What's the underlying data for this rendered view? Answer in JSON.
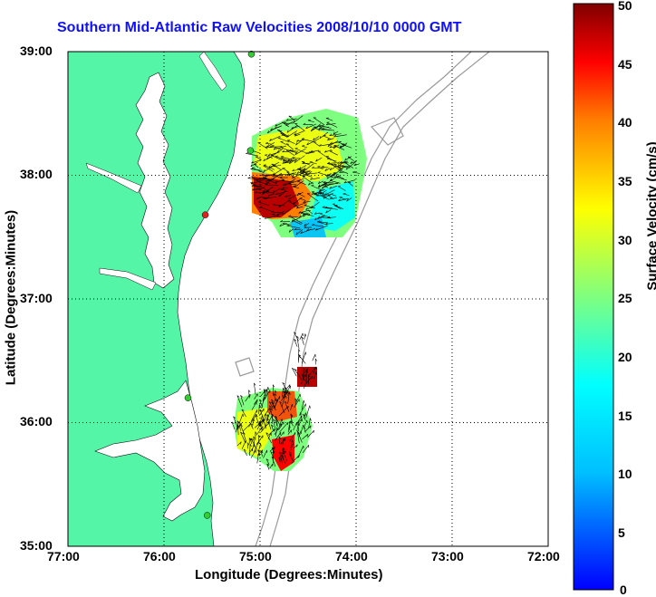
{
  "title": "Southern Mid-Atlantic Raw Velocities 2008/10/10 0000 GMT",
  "x_axis": {
    "label": "Longitude (Degrees:Minutes)",
    "ticks": [
      "77:00",
      "76:00",
      "75:00",
      "74:00",
      "73:00",
      "72:00"
    ]
  },
  "y_axis": {
    "label": "Latitude (Degrees:Minutes)",
    "ticks": [
      "39:00",
      "38:00",
      "37:00",
      "36:00",
      "35:00"
    ]
  },
  "colorbar": {
    "label": "Surface Velocity (cm/s)",
    "ticks": [
      "50",
      "45",
      "40",
      "35",
      "30",
      "25",
      "20",
      "15",
      "10",
      "5",
      "0"
    ],
    "range": [
      0,
      50
    ]
  },
  "map": {
    "lon_range": [
      -77,
      -72
    ],
    "lat_range": [
      35,
      39
    ],
    "land_color": "#55f5a8",
    "water_color": "#ffffff",
    "bathymetry_color": "#999999",
    "grid": true
  },
  "stations": [
    {
      "lon": -75.09,
      "lat": 38.98,
      "color": "#33cc33"
    },
    {
      "lon": -75.1,
      "lat": 38.2,
      "color": "#33cc33"
    },
    {
      "lon": -75.57,
      "lat": 37.68,
      "color": "#dd2222"
    },
    {
      "lon": -75.75,
      "lat": 36.2,
      "color": "#33cc33"
    },
    {
      "lon": -75.55,
      "lat": 35.25,
      "color": "#33cc33"
    }
  ]
}
